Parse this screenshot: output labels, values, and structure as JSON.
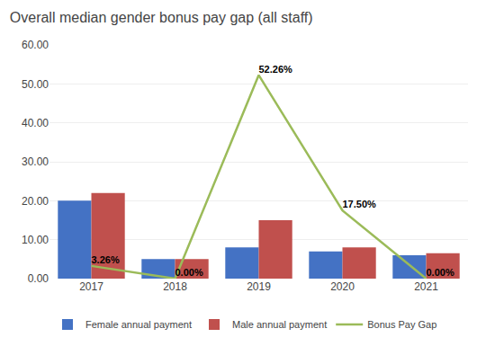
{
  "chart_data": {
    "type": "bar",
    "title": "Overall median gender bonus pay gap (all staff)",
    "categories": [
      "2017",
      "2018",
      "2019",
      "2020",
      "2021"
    ],
    "series": [
      {
        "name": "Female annual payment",
        "color": "#4472C4",
        "values": [
          20.0,
          5.0,
          8.0,
          7.0,
          6.0
        ]
      },
      {
        "name": "Male annual payment",
        "color": "#C0504D",
        "values": [
          22.0,
          5.0,
          15.0,
          8.0,
          6.5
        ]
      },
      {
        "name": "Bonus Pay Gap",
        "type": "line",
        "color": "#9BBB59",
        "values": [
          3.26,
          0.0,
          52.26,
          17.5,
          0.0
        ],
        "value_labels": [
          "3.26%",
          "0.00%",
          "52.26%",
          "17.50%",
          "0.00%"
        ],
        "data_labels": true
      }
    ],
    "ylim": [
      0,
      60
    ],
    "yticks": [
      {
        "value": 0,
        "label": "0.00"
      },
      {
        "value": 10,
        "label": "10.00"
      },
      {
        "value": 20,
        "label": "20.00"
      },
      {
        "value": 30,
        "label": "30.00"
      },
      {
        "value": 40,
        "label": "40.00"
      },
      {
        "value": 50,
        "label": "50.00"
      },
      {
        "value": 60,
        "label": "60.00"
      }
    ],
    "grid": true,
    "legend": "bottom"
  }
}
